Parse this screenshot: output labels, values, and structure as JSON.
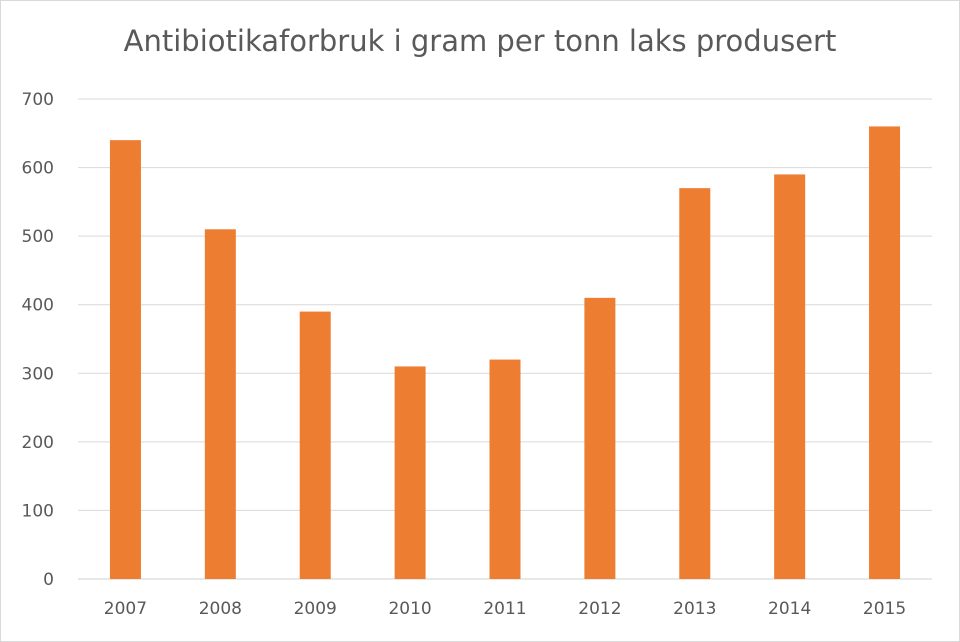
{
  "chart_data": {
    "type": "bar",
    "title": "Antibiotikaforbruk i gram per tonn laks produsert",
    "categories": [
      "2007",
      "2008",
      "2009",
      "2010",
      "2011",
      "2012",
      "2013",
      "2014",
      "2015"
    ],
    "values": [
      640,
      510,
      390,
      310,
      320,
      410,
      570,
      590,
      660
    ],
    "ylim": [
      0,
      700
    ],
    "yticks": [
      "0",
      "100",
      "200",
      "300",
      "400",
      "500",
      "600",
      "700"
    ],
    "grid": true,
    "bar_color": "#ED7D31",
    "grid_color": "#D9D9D9"
  }
}
